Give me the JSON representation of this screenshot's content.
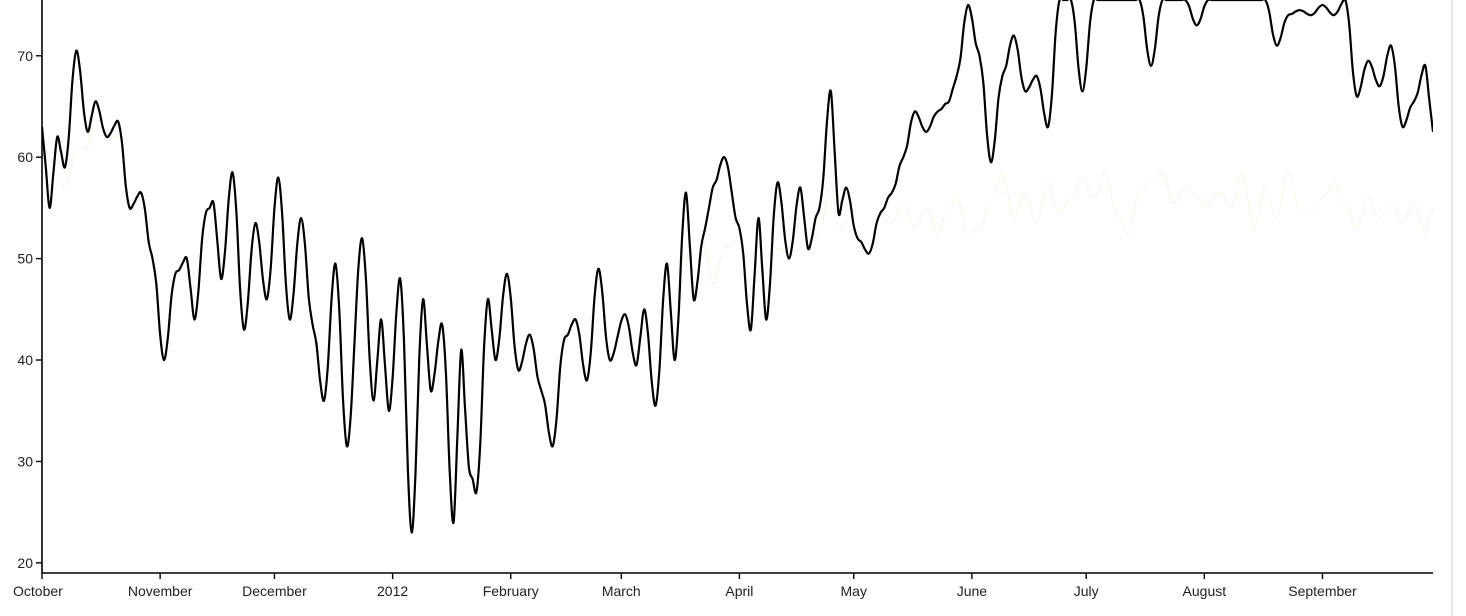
{
  "chart_data": {
    "type": "area",
    "title": "",
    "xlabel": "",
    "ylabel": "",
    "ylim": [
      19,
      75.5
    ],
    "x_range": [
      "2011-10-01",
      "2012-09-30"
    ],
    "yticks": [
      20,
      30,
      40,
      50,
      60,
      70
    ],
    "xticks": [
      {
        "date": "2011-10-01",
        "label": "October"
      },
      {
        "date": "2011-11-01",
        "label": "November"
      },
      {
        "date": "2011-12-01",
        "label": "December"
      },
      {
        "date": "2012-01-01",
        "label": "2012"
      },
      {
        "date": "2012-02-01",
        "label": "February"
      },
      {
        "date": "2012-03-01",
        "label": "March"
      },
      {
        "date": "2012-04-01",
        "label": "April"
      },
      {
        "date": "2012-05-01",
        "label": "May"
      },
      {
        "date": "2012-06-01",
        "label": "June"
      },
      {
        "date": "2012-07-01",
        "label": "July"
      },
      {
        "date": "2012-08-01",
        "label": "August"
      },
      {
        "date": "2012-09-01",
        "label": "September"
      }
    ],
    "colors": {
      "above": "#91cf60",
      "below": "#fc8d59",
      "line": "#000000"
    },
    "series": [
      {
        "points": [
          [
            "2011-10-01",
            63.0
          ],
          [
            "2011-10-03",
            55.0
          ],
          [
            "2011-10-05",
            62.0
          ],
          [
            "2011-10-07",
            59.0
          ],
          [
            "2011-10-10",
            70.5
          ],
          [
            "2011-10-13",
            62.5
          ],
          [
            "2011-10-15",
            65.5
          ],
          [
            "2011-10-18",
            62.0
          ],
          [
            "2011-10-21",
            63.5
          ],
          [
            "2011-10-24",
            55.0
          ],
          [
            "2011-10-27",
            56.5
          ],
          [
            "2011-10-30",
            50.0
          ],
          [
            "2011-11-02",
            40.0
          ],
          [
            "2011-11-05",
            48.5
          ],
          [
            "2011-11-08",
            50.0
          ],
          [
            "2011-11-10",
            44.0
          ],
          [
            "2011-11-13",
            54.5
          ],
          [
            "2011-11-15",
            55.5
          ],
          [
            "2011-11-17",
            48.0
          ],
          [
            "2011-11-20",
            58.5
          ],
          [
            "2011-11-23",
            43.0
          ],
          [
            "2011-11-26",
            53.5
          ],
          [
            "2011-11-29",
            46.0
          ],
          [
            "2011-12-02",
            58.0
          ],
          [
            "2011-12-05",
            44.0
          ],
          [
            "2011-12-08",
            54.0
          ],
          [
            "2011-12-11",
            43.5
          ],
          [
            "2011-12-14",
            36.0
          ],
          [
            "2011-12-17",
            49.5
          ],
          [
            "2011-12-20",
            31.5
          ],
          [
            "2011-12-24",
            52.0
          ],
          [
            "2011-12-27",
            36.0
          ],
          [
            "2011-12-29",
            44.0
          ],
          [
            "2011-12-31",
            35.0
          ],
          [
            "2012-01-03",
            48.0
          ],
          [
            "2012-01-06",
            23.0
          ],
          [
            "2012-01-09",
            46.0
          ],
          [
            "2012-01-11",
            37.0
          ],
          [
            "2012-01-14",
            43.5
          ],
          [
            "2012-01-17",
            24.0
          ],
          [
            "2012-01-19",
            41.0
          ],
          [
            "2012-01-21",
            29.5
          ],
          [
            "2012-01-23",
            27.0
          ],
          [
            "2012-01-26",
            46.0
          ],
          [
            "2012-01-28",
            40.0
          ],
          [
            "2012-01-31",
            48.5
          ],
          [
            "2012-02-03",
            39.0
          ],
          [
            "2012-02-06",
            42.5
          ],
          [
            "2012-02-09",
            37.0
          ],
          [
            "2012-02-12",
            31.5
          ],
          [
            "2012-02-15",
            42.0
          ],
          [
            "2012-02-18",
            44.0
          ],
          [
            "2012-02-21",
            38.0
          ],
          [
            "2012-02-24",
            49.0
          ],
          [
            "2012-02-27",
            40.0
          ],
          [
            "2012-03-02",
            44.5
          ],
          [
            "2012-03-05",
            39.5
          ],
          [
            "2012-03-07",
            45.0
          ],
          [
            "2012-03-10",
            35.5
          ],
          [
            "2012-03-13",
            49.5
          ],
          [
            "2012-03-15",
            40.0
          ],
          [
            "2012-03-18",
            56.5
          ],
          [
            "2012-03-20",
            46.0
          ],
          [
            "2012-03-23",
            53.0
          ],
          [
            "2012-03-25",
            57.0
          ],
          [
            "2012-03-28",
            60.0
          ],
          [
            "2012-04-01",
            53.0
          ],
          [
            "2012-04-04",
            43.0
          ],
          [
            "2012-04-06",
            54.0
          ],
          [
            "2012-04-08",
            44.0
          ],
          [
            "2012-04-11",
            57.5
          ],
          [
            "2012-04-14",
            50.0
          ],
          [
            "2012-04-17",
            57.0
          ],
          [
            "2012-04-19",
            51.0
          ],
          [
            "2012-04-22",
            55.0
          ],
          [
            "2012-04-25",
            66.5
          ],
          [
            "2012-04-27",
            54.5
          ],
          [
            "2012-04-29",
            57.0
          ],
          [
            "2012-05-02",
            52.0
          ],
          [
            "2012-05-05",
            50.5
          ],
          [
            "2012-05-08",
            54.5
          ],
          [
            "2012-05-11",
            56.5
          ],
          [
            "2012-05-14",
            60.0
          ],
          [
            "2012-05-17",
            64.5
          ],
          [
            "2012-05-20",
            62.5
          ],
          [
            "2012-05-23",
            64.5
          ],
          [
            "2012-05-26",
            65.5
          ],
          [
            "2012-05-28",
            68.0
          ],
          [
            "2012-05-31",
            75.0
          ],
          [
            "2012-06-03",
            70.0
          ],
          [
            "2012-06-06",
            59.5
          ],
          [
            "2012-06-09",
            68.0
          ],
          [
            "2012-06-12",
            72.0
          ],
          [
            "2012-06-15",
            66.5
          ],
          [
            "2012-06-18",
            68.0
          ],
          [
            "2012-06-21",
            63.0
          ],
          [
            "2012-06-24",
            75.5
          ],
          [
            "2012-06-27",
            75.5
          ],
          [
            "2012-06-30",
            66.5
          ],
          [
            "2012-07-03",
            75.5
          ],
          [
            "2012-07-06",
            75.5
          ],
          [
            "2012-07-09",
            75.5
          ],
          [
            "2012-07-12",
            75.5
          ],
          [
            "2012-07-15",
            75.5
          ],
          [
            "2012-07-18",
            69.0
          ],
          [
            "2012-07-21",
            75.5
          ],
          [
            "2012-07-24",
            75.5
          ],
          [
            "2012-07-27",
            75.5
          ],
          [
            "2012-07-30",
            73.0
          ],
          [
            "2012-08-02",
            75.5
          ],
          [
            "2012-08-05",
            75.5
          ],
          [
            "2012-08-08",
            75.5
          ],
          [
            "2012-08-11",
            75.5
          ],
          [
            "2012-08-14",
            75.5
          ],
          [
            "2012-08-17",
            75.5
          ],
          [
            "2012-08-20",
            71.0
          ],
          [
            "2012-08-23",
            74.0
          ],
          [
            "2012-08-26",
            74.5
          ],
          [
            "2012-08-29",
            74.0
          ],
          [
            "2012-09-01",
            75.0
          ],
          [
            "2012-09-04",
            74.0
          ],
          [
            "2012-09-07",
            75.5
          ],
          [
            "2012-09-10",
            66.0
          ],
          [
            "2012-09-13",
            69.5
          ],
          [
            "2012-09-16",
            67.0
          ],
          [
            "2012-09-19",
            71.0
          ],
          [
            "2012-09-22",
            63.0
          ],
          [
            "2012-09-25",
            65.5
          ],
          [
            "2012-09-28",
            69.0
          ],
          [
            "2012-09-30",
            62.5
          ]
        ]
      },
      {
        "points": [
          [
            "2011-10-01",
            60.0
          ],
          [
            "2011-10-03",
            59.0
          ],
          [
            "2011-10-05",
            58.5
          ],
          [
            "2011-10-07",
            57.0
          ],
          [
            "2011-10-10",
            60.5
          ],
          [
            "2011-10-13",
            61.0
          ],
          [
            "2011-10-15",
            66.0
          ],
          [
            "2011-10-18",
            62.0
          ],
          [
            "2011-10-21",
            62.0
          ],
          [
            "2011-10-24",
            63.5
          ],
          [
            "2011-10-27",
            55.0
          ],
          [
            "2011-10-30",
            57.5
          ],
          [
            "2011-11-02",
            55.0
          ],
          [
            "2011-11-05",
            62.0
          ],
          [
            "2011-11-08",
            51.0
          ],
          [
            "2011-11-10",
            52.0
          ],
          [
            "2011-11-13",
            51.5
          ],
          [
            "2011-11-15",
            54.0
          ],
          [
            "2011-11-17",
            53.5
          ],
          [
            "2011-11-20",
            53.0
          ],
          [
            "2011-11-23",
            54.5
          ],
          [
            "2011-11-26",
            50.0
          ],
          [
            "2011-11-29",
            53.0
          ],
          [
            "2011-12-02",
            51.0
          ],
          [
            "2011-12-05",
            61.0
          ],
          [
            "2011-12-08",
            52.0
          ],
          [
            "2011-12-11",
            50.0
          ],
          [
            "2011-12-14",
            49.5
          ],
          [
            "2011-12-17",
            48.5
          ],
          [
            "2011-12-20",
            49.0
          ],
          [
            "2011-12-24",
            52.0
          ],
          [
            "2011-12-27",
            49.5
          ],
          [
            "2011-12-29",
            51.0
          ],
          [
            "2011-12-31",
            50.5
          ],
          [
            "2012-01-03",
            53.0
          ],
          [
            "2012-01-06",
            49.5
          ],
          [
            "2012-01-09",
            52.0
          ],
          [
            "2012-01-11",
            55.0
          ],
          [
            "2012-01-14",
            51.0
          ],
          [
            "2012-01-17",
            49.5
          ],
          [
            "2012-01-19",
            44.0
          ],
          [
            "2012-01-21",
            52.0
          ],
          [
            "2012-01-23",
            51.0
          ],
          [
            "2012-01-26",
            53.0
          ],
          [
            "2012-01-28",
            50.0
          ],
          [
            "2012-01-31",
            52.0
          ],
          [
            "2012-02-03",
            49.0
          ],
          [
            "2012-02-06",
            53.0
          ],
          [
            "2012-02-09",
            54.5
          ],
          [
            "2012-02-12",
            51.5
          ],
          [
            "2012-02-15",
            50.0
          ],
          [
            "2012-02-18",
            47.5
          ],
          [
            "2012-02-21",
            55.0
          ],
          [
            "2012-02-24",
            48.0
          ],
          [
            "2012-02-27",
            49.5
          ],
          [
            "2012-03-02",
            53.5
          ],
          [
            "2012-03-05",
            52.0
          ],
          [
            "2012-03-07",
            49.0
          ],
          [
            "2012-03-10",
            48.0
          ],
          [
            "2012-03-13",
            49.5
          ],
          [
            "2012-03-15",
            48.0
          ],
          [
            "2012-03-18",
            49.0
          ],
          [
            "2012-03-20",
            55.5
          ],
          [
            "2012-03-23",
            51.0
          ],
          [
            "2012-03-25",
            47.5
          ],
          [
            "2012-03-28",
            51.0
          ],
          [
            "2012-04-01",
            52.0
          ],
          [
            "2012-04-04",
            48.0
          ],
          [
            "2012-04-06",
            55.0
          ],
          [
            "2012-04-08",
            49.0
          ],
          [
            "2012-04-11",
            51.0
          ],
          [
            "2012-04-14",
            50.5
          ],
          [
            "2012-04-17",
            53.5
          ],
          [
            "2012-04-19",
            51.0
          ],
          [
            "2012-04-22",
            52.5
          ],
          [
            "2012-04-25",
            57.5
          ],
          [
            "2012-04-27",
            53.0
          ],
          [
            "2012-04-29",
            53.5
          ],
          [
            "2012-05-02",
            55.0
          ],
          [
            "2012-05-05",
            52.0
          ],
          [
            "2012-05-08",
            54.0
          ],
          [
            "2012-05-11",
            53.5
          ],
          [
            "2012-05-14",
            55.5
          ],
          [
            "2012-05-17",
            53.0
          ],
          [
            "2012-05-20",
            55.0
          ],
          [
            "2012-05-23",
            52.5
          ],
          [
            "2012-05-26",
            55.0
          ],
          [
            "2012-05-28",
            56.0
          ],
          [
            "2012-05-31",
            52.5
          ],
          [
            "2012-06-03",
            53.0
          ],
          [
            "2012-06-06",
            55.5
          ],
          [
            "2012-06-09",
            58.5
          ],
          [
            "2012-06-12",
            54.0
          ],
          [
            "2012-06-15",
            56.5
          ],
          [
            "2012-06-18",
            53.5
          ],
          [
            "2012-06-21",
            57.5
          ],
          [
            "2012-06-24",
            54.5
          ],
          [
            "2012-06-27",
            56.0
          ],
          [
            "2012-06-30",
            58.0
          ],
          [
            "2012-07-03",
            56.0
          ],
          [
            "2012-07-06",
            58.5
          ],
          [
            "2012-07-09",
            54.5
          ],
          [
            "2012-07-12",
            52.5
          ],
          [
            "2012-07-15",
            56.5
          ],
          [
            "2012-07-18",
            57.5
          ],
          [
            "2012-07-21",
            58.5
          ],
          [
            "2012-07-24",
            55.5
          ],
          [
            "2012-07-27",
            57.0
          ],
          [
            "2012-07-30",
            56.0
          ],
          [
            "2012-08-02",
            55.5
          ],
          [
            "2012-08-05",
            56.5
          ],
          [
            "2012-08-08",
            55.0
          ],
          [
            "2012-08-11",
            58.5
          ],
          [
            "2012-08-14",
            53.0
          ],
          [
            "2012-08-17",
            57.0
          ],
          [
            "2012-08-20",
            54.0
          ],
          [
            "2012-08-23",
            58.5
          ],
          [
            "2012-08-26",
            55.0
          ],
          [
            "2012-08-29",
            54.5
          ],
          [
            "2012-09-01",
            56.0
          ],
          [
            "2012-09-04",
            57.5
          ],
          [
            "2012-09-07",
            55.5
          ],
          [
            "2012-09-10",
            53.0
          ],
          [
            "2012-09-13",
            56.0
          ],
          [
            "2012-09-16",
            54.0
          ],
          [
            "2012-09-19",
            55.5
          ],
          [
            "2012-09-22",
            53.5
          ],
          [
            "2012-09-25",
            55.5
          ],
          [
            "2012-09-28",
            52.5
          ],
          [
            "2012-09-30",
            55.0
          ]
        ]
      }
    ]
  }
}
